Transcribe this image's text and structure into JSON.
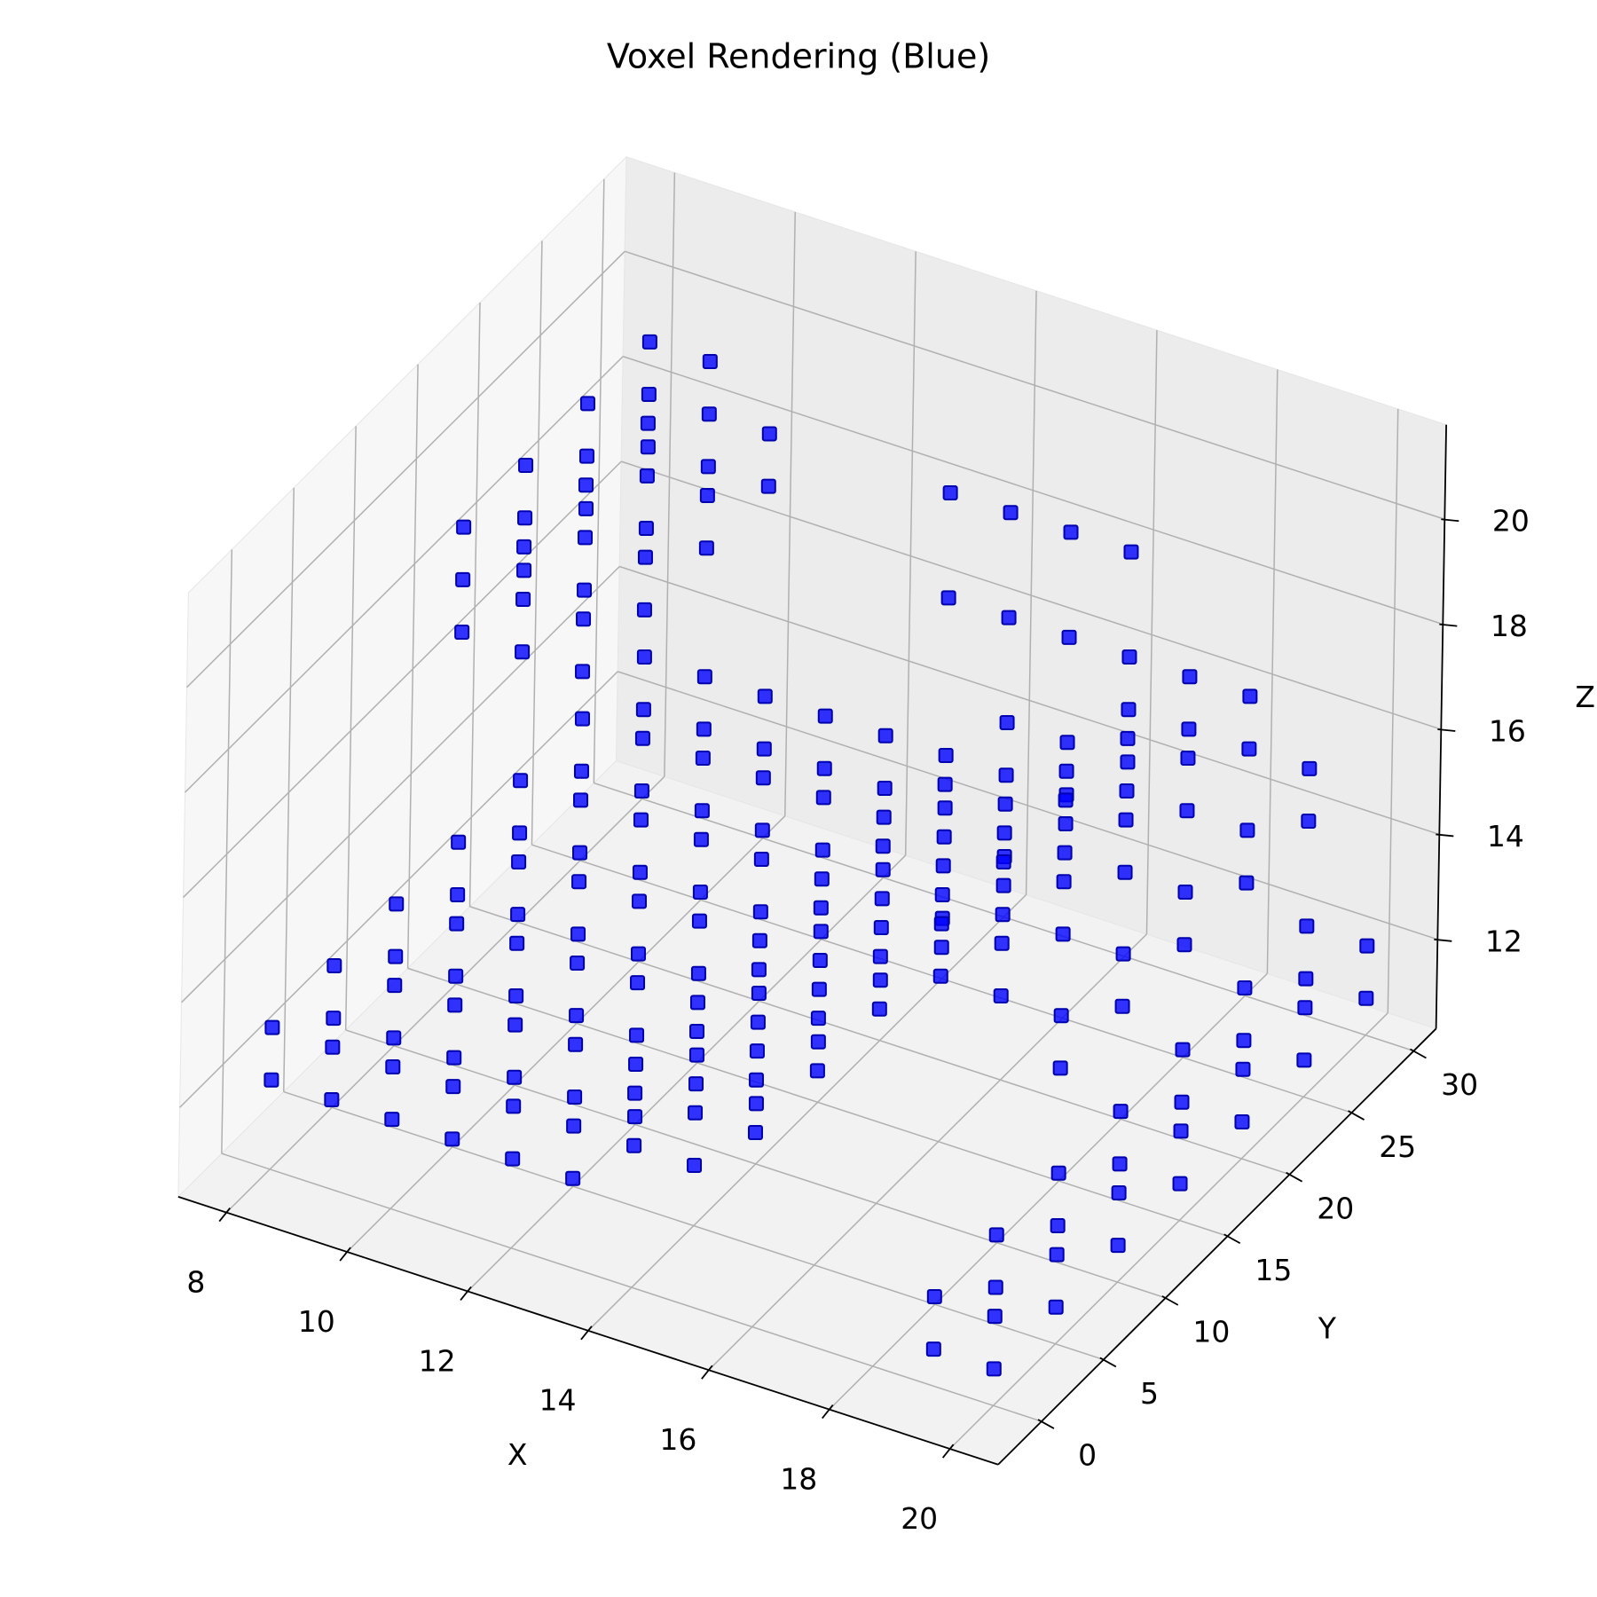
{
  "chart_data": {
    "type": "scatter3d",
    "title": "Voxel Rendering (Blue)",
    "xlabel": "X",
    "ylabel": "Y",
    "zlabel": "Z",
    "color": "#0000ff",
    "grid": true,
    "xlim": [
      7.2,
      20.8
    ],
    "ylim": [
      -3.5,
      31.8
    ],
    "zlim": [
      10.3,
      21.8
    ],
    "xticks": [
      8,
      10,
      12,
      14,
      16,
      18,
      20
    ],
    "yticks": [
      0,
      5,
      10,
      15,
      20,
      25,
      30
    ],
    "zticks": [
      12,
      14,
      16,
      18,
      20
    ],
    "points": [
      [
        8,
        15,
        19
      ],
      [
        8,
        20,
        19
      ],
      [
        8,
        25,
        19
      ],
      [
        8,
        30,
        19
      ],
      [
        8,
        15,
        18
      ],
      [
        8,
        20,
        18
      ],
      [
        8,
        25,
        18
      ],
      [
        8,
        30,
        18
      ],
      [
        8,
        15,
        17
      ],
      [
        8,
        20,
        17
      ],
      [
        8,
        25,
        17
      ],
      [
        8,
        30,
        17
      ],
      [
        9,
        15,
        19
      ],
      [
        9,
        20,
        19
      ],
      [
        9,
        25,
        19
      ],
      [
        9,
        30,
        19
      ],
      [
        9,
        15,
        18
      ],
      [
        9,
        20,
        18
      ],
      [
        9,
        25,
        18
      ],
      [
        9,
        30,
        18
      ],
      [
        9,
        15,
        17
      ],
      [
        9,
        20,
        17
      ],
      [
        9,
        25,
        17
      ],
      [
        9,
        30,
        17
      ],
      [
        10,
        15,
        18
      ],
      [
        10,
        20,
        18
      ],
      [
        10,
        25,
        18
      ],
      [
        10,
        30,
        18
      ],
      [
        10,
        15,
        17
      ],
      [
        10,
        20,
        17
      ],
      [
        10,
        25,
        17
      ],
      [
        10,
        30,
        17
      ],
      [
        8,
        0,
        13
      ],
      [
        8,
        5,
        13
      ],
      [
        8,
        10,
        13
      ],
      [
        8,
        15,
        13
      ],
      [
        8,
        20,
        13
      ],
      [
        8,
        25,
        13
      ],
      [
        8,
        30,
        13
      ],
      [
        8,
        0,
        12
      ],
      [
        8,
        5,
        12
      ],
      [
        8,
        10,
        12
      ],
      [
        8,
        15,
        12
      ],
      [
        8,
        20,
        12
      ],
      [
        8,
        25,
        12
      ],
      [
        8,
        30,
        12
      ],
      [
        9,
        0,
        13
      ],
      [
        9,
        5,
        13
      ],
      [
        9,
        10,
        13
      ],
      [
        9,
        15,
        13
      ],
      [
        9,
        20,
        13
      ],
      [
        9,
        25,
        13
      ],
      [
        9,
        30,
        13
      ],
      [
        9,
        0,
        12
      ],
      [
        9,
        5,
        12
      ],
      [
        9,
        10,
        12
      ],
      [
        9,
        15,
        12
      ],
      [
        9,
        20,
        12
      ],
      [
        9,
        25,
        12
      ],
      [
        9,
        30,
        12
      ],
      [
        10,
        0,
        13
      ],
      [
        10,
        5,
        13
      ],
      [
        10,
        10,
        13
      ],
      [
        10,
        15,
        13
      ],
      [
        10,
        20,
        13
      ],
      [
        10,
        25,
        13
      ],
      [
        10,
        30,
        13
      ],
      [
        10,
        0,
        12
      ],
      [
        10,
        5,
        12
      ],
      [
        10,
        10,
        12
      ],
      [
        10,
        15,
        12
      ],
      [
        10,
        20,
        12
      ],
      [
        10,
        25,
        12
      ],
      [
        10,
        30,
        12
      ],
      [
        11,
        0,
        13
      ],
      [
        11,
        5,
        13
      ],
      [
        11,
        10,
        13
      ],
      [
        11,
        15,
        13
      ],
      [
        11,
        20,
        13
      ],
      [
        11,
        25,
        13
      ],
      [
        11,
        30,
        13
      ],
      [
        11,
        0,
        12
      ],
      [
        11,
        5,
        12
      ],
      [
        11,
        10,
        12
      ],
      [
        11,
        15,
        12
      ],
      [
        11,
        20,
        12
      ],
      [
        11,
        25,
        12
      ],
      [
        11,
        30,
        12
      ],
      [
        12,
        0,
        13
      ],
      [
        12,
        5,
        13
      ],
      [
        12,
        10,
        13
      ],
      [
        12,
        15,
        13
      ],
      [
        12,
        20,
        13
      ],
      [
        12,
        25,
        13
      ],
      [
        12,
        30,
        13
      ],
      [
        12,
        0,
        12
      ],
      [
        12,
        5,
        12
      ],
      [
        12,
        10,
        12
      ],
      [
        12,
        15,
        12
      ],
      [
        12,
        20,
        12
      ],
      [
        12,
        25,
        12
      ],
      [
        12,
        30,
        12
      ],
      [
        13,
        30,
        18
      ],
      [
        13,
        30,
        16
      ],
      [
        14,
        30,
        18
      ],
      [
        14,
        30,
        16
      ],
      [
        15,
        30,
        18
      ],
      [
        15,
        30,
        16
      ],
      [
        16,
        30,
        18
      ],
      [
        16,
        30,
        16
      ],
      [
        13,
        0,
        13
      ],
      [
        13,
        5,
        13
      ],
      [
        13,
        10,
        13
      ],
      [
        13,
        15,
        13
      ],
      [
        13,
        20,
        13
      ],
      [
        13,
        25,
        13
      ],
      [
        13,
        30,
        13
      ],
      [
        13,
        0,
        12
      ],
      [
        13,
        5,
        12
      ],
      [
        13,
        10,
        12
      ],
      [
        13,
        15,
        12
      ],
      [
        13,
        20,
        12
      ],
      [
        13,
        25,
        12
      ],
      [
        13,
        30,
        12
      ],
      [
        14,
        0,
        14
      ],
      [
        14,
        5,
        14
      ],
      [
        14,
        10,
        14
      ],
      [
        14,
        15,
        14
      ],
      [
        14,
        20,
        14
      ],
      [
        14,
        25,
        14
      ],
      [
        14,
        30,
        14
      ],
      [
        14,
        0,
        13
      ],
      [
        14,
        5,
        13
      ],
      [
        14,
        10,
        13
      ],
      [
        14,
        15,
        13
      ],
      [
        14,
        20,
        13
      ],
      [
        14,
        25,
        13
      ],
      [
        14,
        30,
        13
      ],
      [
        15,
        0,
        14
      ],
      [
        15,
        5,
        14
      ],
      [
        15,
        10,
        14
      ],
      [
        15,
        15,
        14
      ],
      [
        15,
        20,
        14
      ],
      [
        15,
        25,
        14
      ],
      [
        15,
        30,
        14
      ],
      [
        15,
        0,
        13
      ],
      [
        15,
        5,
        13
      ],
      [
        15,
        10,
        13
      ],
      [
        15,
        15,
        13
      ],
      [
        15,
        20,
        13
      ],
      [
        15,
        25,
        13
      ],
      [
        15,
        30,
        13
      ],
      [
        16,
        0,
        15
      ],
      [
        16,
        5,
        15
      ],
      [
        16,
        10,
        15
      ],
      [
        16,
        15,
        15
      ],
      [
        16,
        20,
        15
      ],
      [
        16,
        25,
        15
      ],
      [
        16,
        30,
        15
      ],
      [
        16,
        0,
        14
      ],
      [
        16,
        5,
        14
      ],
      [
        16,
        10,
        14
      ],
      [
        16,
        15,
        14
      ],
      [
        16,
        20,
        14
      ],
      [
        16,
        25,
        14
      ],
      [
        16,
        30,
        14
      ],
      [
        17,
        10,
        16
      ],
      [
        17,
        15,
        16
      ],
      [
        17,
        20,
        16
      ],
      [
        17,
        25,
        16
      ],
      [
        17,
        30,
        16
      ],
      [
        17,
        10,
        15
      ],
      [
        17,
        15,
        15
      ],
      [
        17,
        20,
        15
      ],
      [
        17,
        25,
        15
      ],
      [
        17,
        30,
        15
      ],
      [
        18,
        10,
        16
      ],
      [
        18,
        15,
        16
      ],
      [
        18,
        20,
        16
      ],
      [
        18,
        25,
        16
      ],
      [
        18,
        30,
        16
      ],
      [
        18,
        10,
        15
      ],
      [
        18,
        15,
        15
      ],
      [
        18,
        20,
        15
      ],
      [
        18,
        25,
        15
      ],
      [
        18,
        30,
        15
      ],
      [
        19,
        10,
        15
      ],
      [
        19,
        15,
        15
      ],
      [
        19,
        20,
        15
      ],
      [
        19,
        25,
        15
      ],
      [
        19,
        30,
        15
      ],
      [
        19,
        10,
        14
      ],
      [
        19,
        15,
        14
      ],
      [
        19,
        20,
        14
      ],
      [
        19,
        25,
        14
      ],
      [
        19,
        30,
        14
      ],
      [
        19,
        0,
        12
      ],
      [
        19,
        5,
        12
      ],
      [
        19,
        10,
        12
      ],
      [
        19,
        15,
        12
      ],
      [
        19,
        20,
        12
      ],
      [
        19,
        25,
        12
      ],
      [
        19,
        30,
        12
      ],
      [
        19,
        0,
        11
      ],
      [
        19,
        5,
        11
      ],
      [
        19,
        10,
        11
      ],
      [
        19,
        15,
        11
      ],
      [
        19,
        20,
        11
      ],
      [
        19,
        25,
        11
      ],
      [
        19,
        30,
        11
      ],
      [
        20,
        0,
        12
      ],
      [
        20,
        5,
        12
      ],
      [
        20,
        10,
        12
      ],
      [
        20,
        15,
        12
      ],
      [
        20,
        20,
        12
      ],
      [
        20,
        25,
        12
      ],
      [
        20,
        30,
        12
      ],
      [
        20,
        0,
        11
      ],
      [
        20,
        5,
        11
      ],
      [
        20,
        10,
        11
      ],
      [
        20,
        15,
        11
      ],
      [
        20,
        20,
        11
      ],
      [
        20,
        25,
        11
      ],
      [
        20,
        30,
        11
      ]
    ]
  }
}
